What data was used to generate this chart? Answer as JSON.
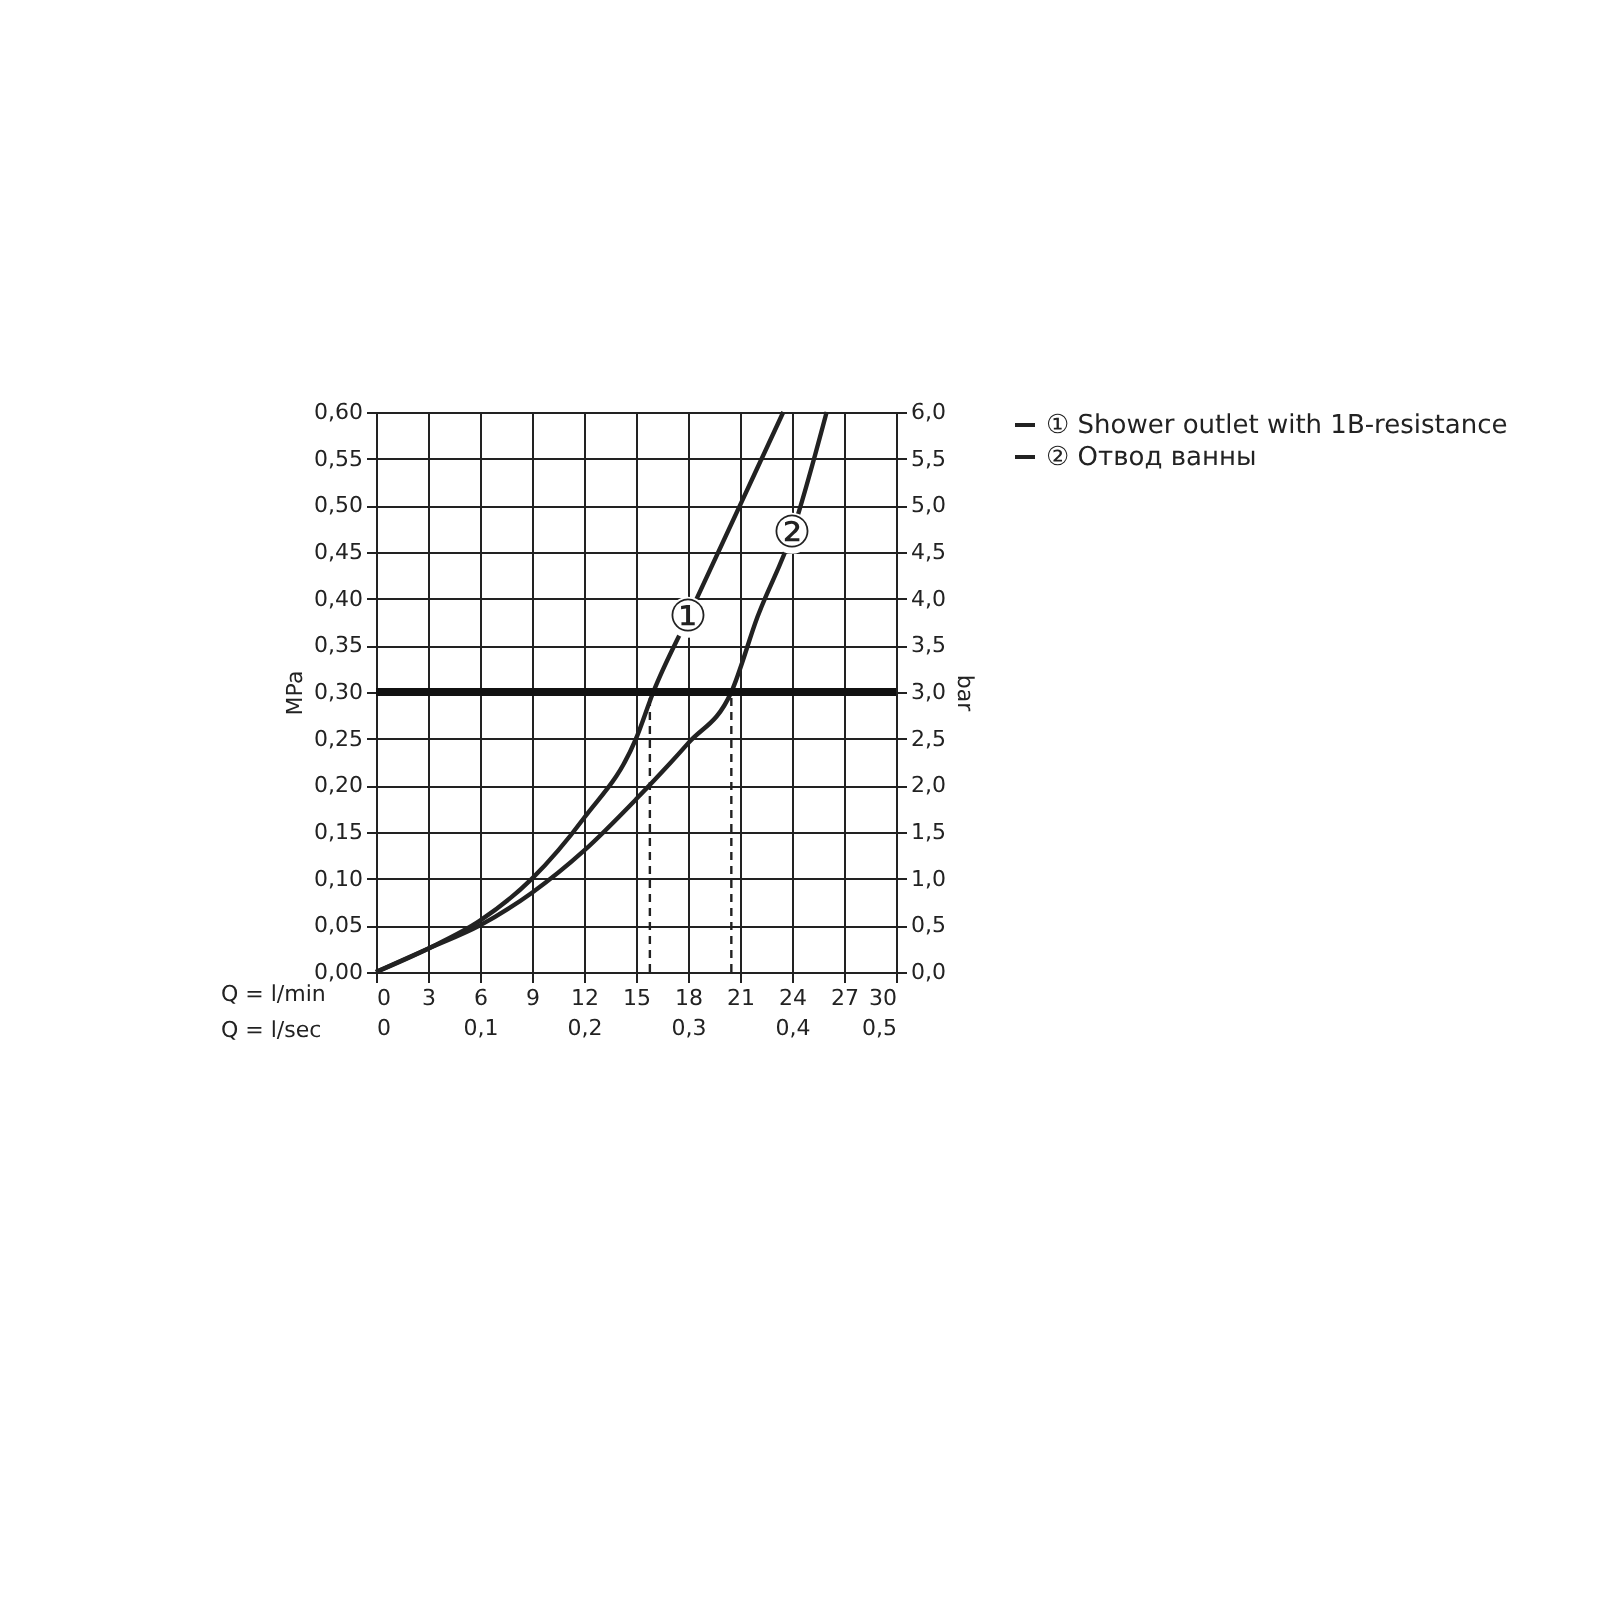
{
  "chart_data": {
    "type": "line",
    "xlabel": "Q = l/min",
    "x2label": "Q = l/sec",
    "ylabel": "MPa",
    "y2label": "bar",
    "series": [
      {
        "name": "① Shower outlet with 1B-resistance",
        "color": "#222222",
        "x": [
          0,
          3,
          6,
          9,
          12,
          15,
          16,
          18,
          21,
          23.5
        ],
        "values": [
          0,
          0.025,
          0.055,
          0.1,
          0.165,
          0.25,
          0.3,
          0.38,
          0.5,
          0.6
        ]
      },
      {
        "name": "② Отвод ванны",
        "color": "#222222",
        "x": [
          0,
          3,
          6,
          9,
          12,
          15,
          18,
          20.5,
          22,
          24,
          26
        ],
        "values": [
          0,
          0.025,
          0.05,
          0.085,
          0.13,
          0.185,
          0.245,
          0.3,
          0.38,
          0.47,
          0.6
        ]
      }
    ],
    "xlim": [
      0,
      30
    ],
    "xticks": [
      0,
      3,
      6,
      9,
      12,
      15,
      18,
      21,
      24,
      27,
      30
    ],
    "x2lim": [
      0,
      0.5
    ],
    "x2ticks": [
      0,
      {
        "value": 0.1,
        "label": "0,1"
      },
      {
        "value": 0.2,
        "label": "0,2"
      },
      {
        "value": 0.3,
        "label": "0,3"
      },
      {
        "value": 0.4,
        "label": "0,4"
      },
      {
        "value": 0.5,
        "label": "0,5"
      }
    ],
    "ylim": [
      0,
      0.6
    ],
    "yticks": [
      {
        "value": 0,
        "label": "0,00"
      },
      {
        "value": 0.05,
        "label": "0,05"
      },
      {
        "value": 0.1,
        "label": "0,10"
      },
      {
        "value": 0.15,
        "label": "0,15"
      },
      {
        "value": 0.2,
        "label": "0,20"
      },
      {
        "value": 0.25,
        "label": "0,25"
      },
      {
        "value": 0.3,
        "label": "0,30"
      },
      {
        "value": 0.35,
        "label": "0,35"
      },
      {
        "value": 0.4,
        "label": "0,40"
      },
      {
        "value": 0.45,
        "label": "0,45"
      },
      {
        "value": 0.5,
        "label": "0,50"
      },
      {
        "value": 0.55,
        "label": "0,55"
      },
      {
        "value": 0.6,
        "label": "0,60"
      }
    ],
    "y2lim": [
      0,
      6
    ],
    "y2ticks": [
      {
        "value": 0,
        "label": "0,0"
      },
      {
        "value": 0.5,
        "label": "0,5"
      },
      {
        "value": 1,
        "label": "1,0"
      },
      {
        "value": 1.5,
        "label": "1,5"
      },
      {
        "value": 2,
        "label": "2,0"
      },
      {
        "value": 2.5,
        "label": "2,5"
      },
      {
        "value": 3,
        "label": "3,0"
      },
      {
        "value": 3.5,
        "label": "3,5"
      },
      {
        "value": 4,
        "label": "4,0"
      },
      {
        "value": 4.5,
        "label": "4,5"
      },
      {
        "value": 5,
        "label": "5,0"
      },
      {
        "value": 5.5,
        "label": "5,5"
      },
      {
        "value": 6,
        "label": "6,0"
      }
    ],
    "ref_lines": [
      {
        "axis": "y",
        "value": 0.3,
        "color": "#111111",
        "line_style": "solid"
      },
      {
        "axis": "x",
        "value": 15.8,
        "color": "#222222",
        "line_style": "dashed"
      },
      {
        "axis": "x",
        "value": 20.5,
        "color": "#222222",
        "line_style": "dashed"
      }
    ],
    "annotations": [
      {
        "text": "①",
        "x": 18,
        "y": 0.38
      },
      {
        "text": "②",
        "x": 24,
        "y": 0.47
      }
    ],
    "grid": true,
    "legend": "right",
    "line_style": "solid",
    "marker": "none"
  }
}
